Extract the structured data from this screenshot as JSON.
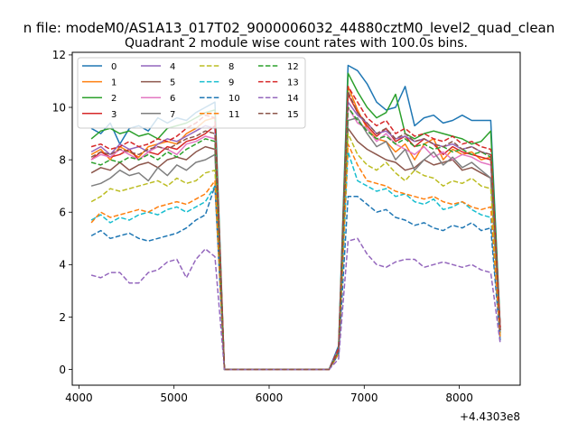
{
  "chart_data": {
    "type": "line",
    "suptitle": "n file: modeM0/AS1A13_017T02_9000006032_44880cztM0_level2_quad_clean",
    "title": "Quadrant 2 module wise count rates with 100.0s bins.",
    "xlabel": "",
    "ylabel": "",
    "x_offset_label": "+4.4303e8",
    "xlim": [
      3930,
      8640
    ],
    "ylim": [
      -0.6,
      12.1
    ],
    "xticks": [
      4000,
      5000,
      6000,
      7000,
      8000
    ],
    "xtick_labels": [
      "4000",
      "5000",
      "6000",
      "7000",
      "8000"
    ],
    "yticks": [
      0,
      2,
      4,
      6,
      8,
      10,
      12
    ],
    "ytick_labels": [
      "0",
      "2",
      "4",
      "6",
      "8",
      "10",
      "12"
    ],
    "grid": false,
    "legend_position": "top-left",
    "legend_columns": 4,
    "x_seg1": [
      4130,
      4230,
      4330,
      4430,
      4530,
      4630,
      4730,
      4830,
      4930,
      5030,
      5130,
      5230,
      5330,
      5430,
      5530
    ],
    "x_seg2": [
      6630,
      6730,
      6830,
      6930,
      7030,
      7130,
      7230,
      7330,
      7430,
      7530,
      7630,
      7730,
      7830,
      7930,
      8030,
      8130,
      8230,
      8330,
      8430
    ],
    "gap_x": [
      5630,
      5730,
      5830,
      5930,
      6030,
      6130,
      6230,
      6330,
      6430,
      6530
    ],
    "series": [
      {
        "name": "0",
        "color": "#1f77b4",
        "dash": false,
        "seg1": [
          9.2,
          9.0,
          9.4,
          8.6,
          9.2,
          9.3,
          9.1,
          9.6,
          9.4,
          9.6,
          9.5,
          9.8,
          10.0,
          10.2,
          0.0
        ],
        "seg2": [
          0.0,
          0.9,
          11.6,
          11.4,
          10.9,
          10.2,
          9.9,
          10.0,
          10.8,
          9.3,
          9.6,
          9.7,
          9.4,
          9.5,
          9.7,
          9.5,
          9.5,
          9.5,
          1.6
        ]
      },
      {
        "name": "1",
        "color": "#ff7f0e",
        "dash": false,
        "seg1": [
          8.2,
          8.4,
          8.0,
          8.5,
          8.3,
          8.1,
          8.5,
          8.6,
          8.7,
          8.6,
          9.0,
          9.2,
          9.5,
          9.6,
          0.0
        ],
        "seg2": [
          0.0,
          0.7,
          10.8,
          9.9,
          9.2,
          8.8,
          8.7,
          8.3,
          8.6,
          8.0,
          8.6,
          8.8,
          8.0,
          8.4,
          8.2,
          8.3,
          8.0,
          8.1,
          1.5
        ]
      },
      {
        "name": "2",
        "color": "#2ca02c",
        "dash": false,
        "seg1": [
          8.8,
          9.1,
          9.2,
          9.0,
          9.1,
          8.9,
          9.0,
          8.8,
          9.2,
          9.3,
          9.4,
          9.6,
          9.8,
          9.9,
          0.0
        ],
        "seg2": [
          0.0,
          0.8,
          11.3,
          10.6,
          10.0,
          9.6,
          9.8,
          10.5,
          9.0,
          8.8,
          9.0,
          9.1,
          9.0,
          8.9,
          8.8,
          8.6,
          8.7,
          9.1,
          1.6
        ]
      },
      {
        "name": "3",
        "color": "#d62728",
        "dash": false,
        "seg1": [
          8.0,
          8.3,
          8.1,
          8.2,
          8.4,
          8.0,
          8.3,
          8.2,
          8.5,
          8.4,
          8.7,
          8.8,
          9.0,
          9.3,
          0.0
        ],
        "seg2": [
          0.0,
          0.7,
          10.5,
          9.8,
          9.3,
          8.9,
          9.2,
          8.7,
          8.9,
          8.5,
          8.8,
          8.6,
          8.2,
          8.5,
          8.3,
          8.2,
          8.1,
          8.0,
          1.5
        ]
      },
      {
        "name": "4",
        "color": "#9467bd",
        "dash": false,
        "seg1": [
          8.3,
          8.5,
          8.2,
          8.6,
          8.4,
          8.5,
          8.3,
          8.6,
          8.8,
          8.7,
          8.9,
          9.1,
          9.3,
          9.2,
          0.0
        ],
        "seg2": [
          0.0,
          0.8,
          10.2,
          9.7,
          9.4,
          9.0,
          9.1,
          8.8,
          8.9,
          8.7,
          8.8,
          8.6,
          8.5,
          8.6,
          8.4,
          8.5,
          8.3,
          8.2,
          1.5
        ]
      },
      {
        "name": "5",
        "color": "#8c564b",
        "dash": false,
        "seg1": [
          7.5,
          7.7,
          7.6,
          7.9,
          7.6,
          7.8,
          7.9,
          7.7,
          8.0,
          8.1,
          8.0,
          8.3,
          8.5,
          8.4,
          0.0
        ],
        "seg2": [
          0.0,
          0.7,
          9.2,
          8.7,
          8.4,
          8.2,
          8.0,
          7.9,
          7.6,
          7.7,
          8.0,
          7.8,
          7.9,
          8.0,
          7.6,
          7.7,
          7.5,
          7.3,
          1.4
        ]
      },
      {
        "name": "6",
        "color": "#e377c2",
        "dash": false,
        "seg1": [
          8.0,
          8.2,
          8.1,
          8.4,
          8.2,
          8.0,
          8.3,
          8.5,
          8.4,
          8.2,
          8.6,
          8.7,
          8.9,
          8.8,
          0.0
        ],
        "seg2": [
          0.0,
          0.7,
          10.0,
          9.4,
          9.2,
          8.7,
          9.0,
          8.6,
          8.4,
          8.2,
          8.5,
          8.1,
          8.3,
          8.0,
          8.2,
          8.1,
          7.9,
          7.8,
          1.5
        ]
      },
      {
        "name": "7",
        "color": "#7f7f7f",
        "dash": false,
        "seg1": [
          7.0,
          7.1,
          7.3,
          7.6,
          7.4,
          7.5,
          7.2,
          7.7,
          7.4,
          7.8,
          7.6,
          7.9,
          8.0,
          8.2,
          0.0
        ],
        "seg2": [
          0.0,
          0.6,
          9.5,
          9.6,
          9.0,
          8.5,
          8.7,
          8.0,
          8.4,
          7.6,
          8.0,
          8.3,
          7.8,
          8.1,
          7.7,
          7.9,
          7.6,
          7.3,
          1.4
        ]
      },
      {
        "name": "8",
        "color": "#bcbd22",
        "dash": true,
        "seg1": [
          6.4,
          6.6,
          6.9,
          6.8,
          6.9,
          7.0,
          7.1,
          7.2,
          7.0,
          7.3,
          7.1,
          7.2,
          7.5,
          7.6,
          0.0
        ],
        "seg2": [
          0.0,
          0.6,
          9.0,
          8.2,
          7.8,
          7.6,
          7.9,
          7.5,
          7.2,
          7.6,
          7.4,
          7.3,
          7.0,
          7.2,
          7.1,
          7.3,
          7.0,
          6.9,
          1.3
        ]
      },
      {
        "name": "9",
        "color": "#17becf",
        "dash": true,
        "seg1": [
          5.7,
          5.9,
          5.6,
          5.8,
          5.7,
          5.9,
          6.0,
          5.9,
          6.1,
          6.2,
          6.0,
          6.2,
          6.4,
          7.0,
          0.0
        ],
        "seg2": [
          0.0,
          0.6,
          8.3,
          7.2,
          7.0,
          6.8,
          6.9,
          6.6,
          6.7,
          6.4,
          6.3,
          6.5,
          6.1,
          6.2,
          6.4,
          6.1,
          5.9,
          5.8,
          1.2
        ]
      },
      {
        "name": "10",
        "color": "#1f77b4",
        "dash": true,
        "seg1": [
          5.1,
          5.3,
          5.0,
          5.1,
          5.2,
          5.0,
          4.9,
          5.0,
          5.1,
          5.2,
          5.4,
          5.7,
          5.9,
          7.0,
          0.0
        ],
        "seg2": [
          0.0,
          0.6,
          6.6,
          6.6,
          6.3,
          6.0,
          6.1,
          5.8,
          5.7,
          5.5,
          5.6,
          5.4,
          5.3,
          5.5,
          5.4,
          5.6,
          5.3,
          5.4,
          1.1
        ]
      },
      {
        "name": "11",
        "color": "#ff7f0e",
        "dash": true,
        "seg1": [
          5.6,
          6.0,
          5.8,
          5.9,
          6.0,
          6.1,
          6.0,
          6.2,
          6.3,
          6.4,
          6.3,
          6.5,
          6.7,
          7.2,
          0.0
        ],
        "seg2": [
          0.0,
          0.6,
          8.6,
          7.8,
          7.2,
          7.1,
          7.0,
          6.8,
          6.7,
          6.6,
          6.5,
          6.6,
          6.4,
          6.3,
          6.4,
          6.2,
          6.1,
          6.2,
          1.2
        ]
      },
      {
        "name": "12",
        "color": "#2ca02c",
        "dash": true,
        "seg1": [
          7.9,
          7.8,
          8.0,
          7.9,
          8.1,
          8.0,
          8.2,
          8.0,
          8.3,
          8.1,
          8.4,
          8.6,
          8.8,
          8.7,
          0.0
        ],
        "seg2": [
          0.0,
          0.7,
          10.0,
          9.5,
          9.1,
          8.8,
          8.9,
          8.6,
          8.8,
          8.5,
          8.6,
          8.4,
          8.5,
          8.3,
          8.4,
          8.2,
          8.3,
          8.1,
          1.5
        ]
      },
      {
        "name": "13",
        "color": "#d62728",
        "dash": true,
        "seg1": [
          8.5,
          8.6,
          8.4,
          8.5,
          8.7,
          8.5,
          8.6,
          8.8,
          8.7,
          8.9,
          9.2,
          9.4,
          9.7,
          9.6,
          0.0
        ],
        "seg2": [
          0.0,
          0.8,
          10.8,
          10.2,
          9.6,
          9.3,
          9.5,
          9.0,
          9.2,
          8.9,
          9.0,
          8.8,
          8.7,
          8.9,
          8.6,
          8.7,
          8.5,
          8.4,
          1.6
        ]
      },
      {
        "name": "14",
        "color": "#9467bd",
        "dash": true,
        "seg1": [
          3.6,
          3.5,
          3.7,
          3.7,
          3.3,
          3.3,
          3.7,
          3.8,
          4.1,
          4.2,
          3.5,
          4.2,
          4.6,
          4.3,
          0.0
        ],
        "seg2": [
          0.0,
          0.4,
          4.9,
          5.0,
          4.4,
          4.0,
          3.9,
          4.1,
          4.2,
          4.2,
          3.9,
          4.0,
          4.1,
          4.0,
          3.9,
          4.0,
          3.8,
          3.7,
          1.0
        ]
      },
      {
        "name": "15",
        "color": "#8c564b",
        "dash": true,
        "seg1": [
          8.1,
          8.3,
          8.2,
          8.4,
          8.3,
          8.2,
          8.4,
          8.5,
          8.4,
          8.6,
          8.8,
          8.9,
          9.1,
          9.0,
          0.0
        ],
        "seg2": [
          0.0,
          0.7,
          10.6,
          9.8,
          9.4,
          9.0,
          9.2,
          8.8,
          9.0,
          8.7,
          8.8,
          8.6,
          8.5,
          8.7,
          8.4,
          8.5,
          8.3,
          8.2,
          1.5
        ]
      }
    ]
  }
}
